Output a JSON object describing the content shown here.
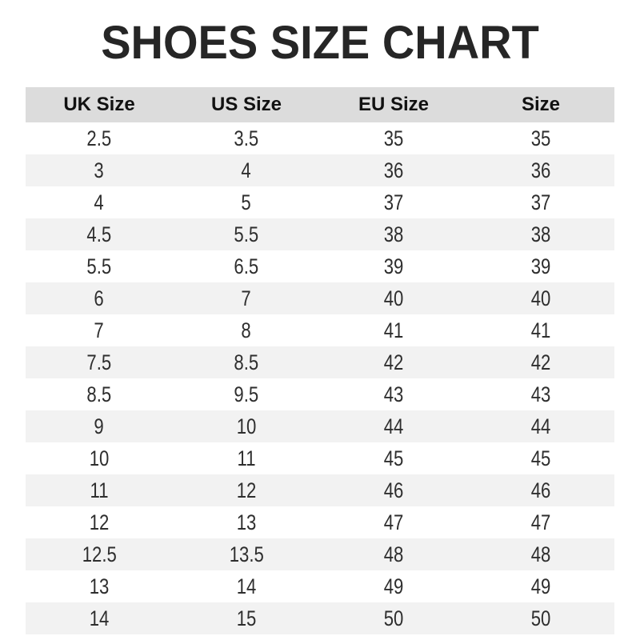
{
  "title": "SHOES SIZE CHART",
  "colors": {
    "header_bg": "#dcdcdc",
    "stripe_bg": "#f2f2f2",
    "title_color": "#262626",
    "text_color": "#2e2e2e"
  },
  "table": {
    "columns": [
      "UK Size",
      "US Size",
      "EU Size",
      "Size"
    ],
    "rows": [
      [
        "2.5",
        "3.5",
        "35",
        "35"
      ],
      [
        "3",
        "4",
        "36",
        "36"
      ],
      [
        "4",
        "5",
        "37",
        "37"
      ],
      [
        "4.5",
        "5.5",
        "38",
        "38"
      ],
      [
        "5.5",
        "6.5",
        "39",
        "39"
      ],
      [
        "6",
        "7",
        "40",
        "40"
      ],
      [
        "7",
        "8",
        "41",
        "41"
      ],
      [
        "7.5",
        "8.5",
        "42",
        "42"
      ],
      [
        "8.5",
        "9.5",
        "43",
        "43"
      ],
      [
        "9",
        "10",
        "44",
        "44"
      ],
      [
        "10",
        "11",
        "45",
        "45"
      ],
      [
        "11",
        "12",
        "46",
        "46"
      ],
      [
        "12",
        "13",
        "47",
        "47"
      ],
      [
        "12.5",
        "13.5",
        "48",
        "48"
      ],
      [
        "13",
        "14",
        "49",
        "49"
      ],
      [
        "14",
        "15",
        "50",
        "50"
      ]
    ]
  },
  "chart_data": {
    "type": "table",
    "title": "SHOES SIZE CHART",
    "columns": [
      "UK Size",
      "US Size",
      "EU Size",
      "Size"
    ],
    "rows": [
      [
        "2.5",
        "3.5",
        "35",
        "35"
      ],
      [
        "3",
        "4",
        "36",
        "36"
      ],
      [
        "4",
        "5",
        "37",
        "37"
      ],
      [
        "4.5",
        "5.5",
        "38",
        "38"
      ],
      [
        "5.5",
        "6.5",
        "39",
        "39"
      ],
      [
        "6",
        "7",
        "40",
        "40"
      ],
      [
        "7",
        "8",
        "41",
        "41"
      ],
      [
        "7.5",
        "8.5",
        "42",
        "42"
      ],
      [
        "8.5",
        "9.5",
        "43",
        "43"
      ],
      [
        "9",
        "10",
        "44",
        "44"
      ],
      [
        "10",
        "11",
        "45",
        "45"
      ],
      [
        "11",
        "12",
        "46",
        "46"
      ],
      [
        "12",
        "13",
        "47",
        "47"
      ],
      [
        "12.5",
        "13.5",
        "48",
        "48"
      ],
      [
        "13",
        "14",
        "49",
        "49"
      ],
      [
        "14",
        "15",
        "50",
        "50"
      ]
    ],
    "layout": {
      "header_background": "#dcdcdc",
      "row_stripe_background": "#f2f2f2",
      "striped_rows": "even rows (2nd, 4th, ...)",
      "alignment": "center"
    }
  }
}
